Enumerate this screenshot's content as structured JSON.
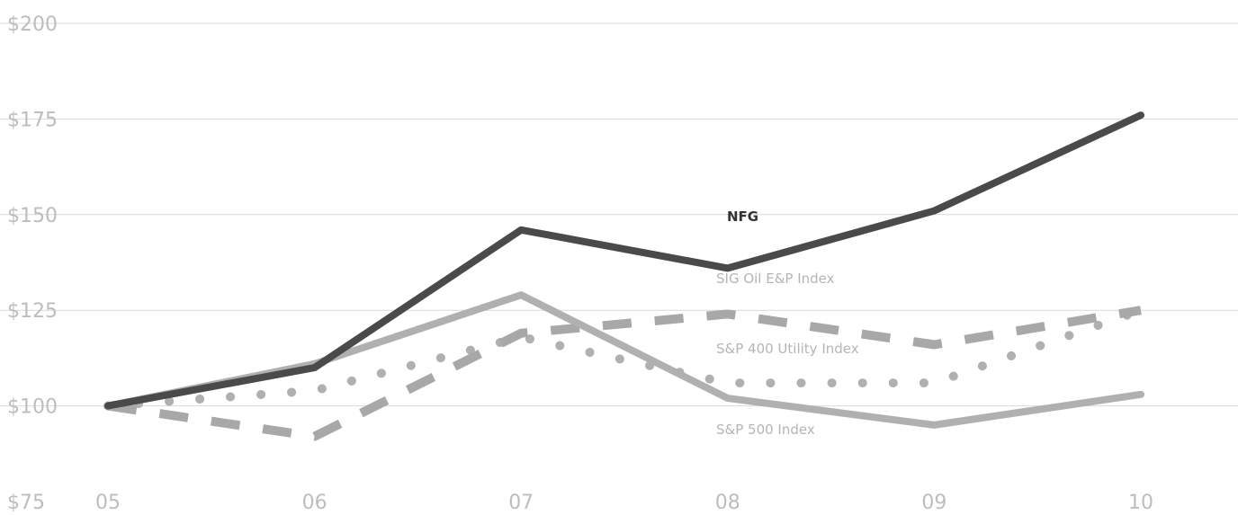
{
  "chart_data": {
    "type": "line",
    "categories": [
      "05",
      "06",
      "07",
      "08",
      "09",
      "10"
    ],
    "ylim": [
      75,
      200
    ],
    "yticks": [
      75,
      100,
      125,
      150,
      175,
      200
    ],
    "ytick_labels": [
      "$75",
      "$100",
      "$125",
      "$150",
      "$175",
      "$200"
    ],
    "grid": true,
    "title": "",
    "xlabel": "",
    "ylabel": "",
    "series": [
      {
        "name": "NFG",
        "values": [
          100,
          110,
          146,
          136,
          151,
          176
        ],
        "color": "#4a4a4a",
        "style": "solid"
      },
      {
        "name": "SIG Oil E&P Index",
        "values": [
          100,
          111,
          129,
          102,
          95,
          103
        ],
        "color": "#b0b0b0",
        "style": "solid"
      },
      {
        "name": "S&P 400 Utility Index",
        "values": [
          100,
          92,
          119,
          124,
          116,
          125
        ],
        "color": "#a8a8a8",
        "style": "dashed"
      },
      {
        "name": "S&P 500 Index",
        "values": [
          100,
          104,
          118,
          106,
          106,
          125
        ],
        "color": "#b0b0b0",
        "style": "dotted"
      }
    ]
  }
}
